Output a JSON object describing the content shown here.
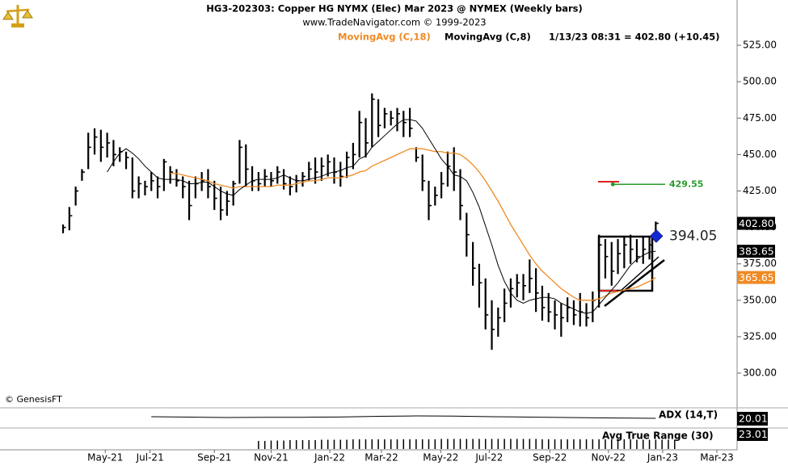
{
  "chart_data": {
    "type": "hlc",
    "title": "HG3-202303:  Copper HG NYMX (Elec) Mar 2023 @ NYMEX  (Weekly bars)",
    "subtitle": "www.TradeNavigator.com © 1999-2023",
    "quote": "1/13/23 08:31 = 402.80 (+10.45)",
    "watermark": "© GenesisFT",
    "bars": {
      "color": "#000000",
      "high": [
        402,
        414,
        428,
        440,
        465,
        468,
        467,
        465,
        460,
        455,
        452,
        448,
        435,
        432,
        438,
        435,
        447,
        442,
        440,
        435,
        432,
        435,
        438,
        440,
        432,
        428,
        425,
        432,
        460,
        457,
        442,
        438,
        440,
        438,
        442,
        440,
        435,
        436,
        438,
        445,
        448,
        448,
        450,
        448,
        445,
        452,
        458,
        480,
        475,
        492,
        488,
        482,
        480,
        482,
        480,
        482,
        455,
        450,
        432,
        428,
        438,
        452,
        455,
        440,
        410,
        390,
        375,
        365,
        350,
        345,
        358,
        365,
        368,
        368,
        378,
        372,
        360,
        355,
        350,
        348,
        352,
        350,
        355,
        348,
        356,
        395,
        392,
        390,
        392,
        394,
        395,
        392,
        394,
        394,
        404
      ],
      "low": [
        396,
        398,
        415,
        432,
        440,
        450,
        445,
        448,
        442,
        445,
        440,
        420,
        420,
        422,
        425,
        420,
        425,
        430,
        428,
        420,
        405,
        420,
        425,
        420,
        412,
        405,
        408,
        415,
        430,
        428,
        425,
        425,
        428,
        428,
        430,
        426,
        422,
        424,
        428,
        432,
        430,
        432,
        435,
        430,
        428,
        434,
        440,
        448,
        448,
        455,
        462,
        468,
        470,
        466,
        462,
        462,
        445,
        425,
        405,
        415,
        420,
        428,
        425,
        405,
        380,
        360,
        345,
        330,
        316,
        325,
        335,
        345,
        352,
        350,
        355,
        342,
        336,
        335,
        330,
        325,
        335,
        333,
        332,
        332,
        335,
        345,
        365,
        360,
        368,
        372,
        375,
        376,
        375,
        378,
        390
      ],
      "close": [
        400,
        408,
        425,
        438,
        455,
        462,
        455,
        458,
        450,
        452,
        448,
        425,
        430,
        428,
        432,
        428,
        445,
        438,
        432,
        428,
        415,
        430,
        432,
        428,
        420,
        412,
        418,
        430,
        455,
        440,
        432,
        430,
        435,
        432,
        438,
        430,
        428,
        432,
        435,
        440,
        438,
        442,
        445,
        438,
        435,
        448,
        450,
        472,
        458,
        488,
        470,
        478,
        475,
        478,
        472,
        468,
        448,
        432,
        415,
        422,
        430,
        442,
        438,
        415,
        395,
        372,
        362,
        340,
        330,
        338,
        348,
        358,
        362,
        360,
        365,
        355,
        345,
        342,
        340,
        338,
        345,
        340,
        342,
        338,
        350,
        388,
        380,
        370,
        382,
        388,
        385,
        380,
        385,
        388,
        402.8
      ]
    },
    "overlays": [
      {
        "name": "MovingAvg (C,18)",
        "color": "#f08a24",
        "width": 1.3,
        "values": [
          null,
          null,
          null,
          null,
          null,
          null,
          null,
          null,
          null,
          null,
          null,
          null,
          null,
          null,
          null,
          null,
          null,
          437,
          437,
          436,
          435,
          434,
          433,
          432,
          430,
          429,
          428,
          427,
          428,
          428,
          428,
          428,
          428,
          428,
          429,
          429,
          429,
          430,
          431,
          432,
          432,
          433,
          434,
          434,
          434,
          435,
          436,
          438,
          439,
          442,
          444,
          446,
          448,
          450,
          452,
          454,
          454,
          454,
          453,
          452,
          452,
          451,
          451,
          450,
          447,
          443,
          438,
          432,
          425,
          418,
          410,
          402,
          395,
          388,
          381,
          375,
          370,
          366,
          362,
          358,
          355,
          352,
          350,
          350,
          350,
          351,
          353,
          355,
          356,
          357,
          358,
          359,
          361,
          363,
          365.65
        ]
      },
      {
        "name": "MovingAvg (C,8)",
        "color": "#000000",
        "width": 1,
        "values": [
          null,
          null,
          null,
          null,
          null,
          null,
          null,
          438,
          445,
          451,
          454,
          451,
          447,
          442,
          438,
          434,
          433,
          433,
          433,
          432,
          430,
          430,
          431,
          431,
          428,
          425,
          423,
          422,
          426,
          429,
          432,
          433,
          433,
          433,
          434,
          436,
          434,
          432,
          432,
          433,
          434,
          435,
          437,
          438,
          439,
          441,
          442,
          447,
          449,
          455,
          459,
          463,
          467,
          471,
          474,
          474,
          473,
          468,
          461,
          454,
          447,
          442,
          436,
          435,
          432,
          424,
          414,
          401,
          388,
          374,
          363,
          355,
          350,
          348,
          350,
          351,
          352,
          352,
          351,
          348,
          346,
          344,
          342,
          341,
          342,
          347,
          352,
          357,
          362,
          368,
          374,
          378,
          381,
          383,
          383.65
        ]
      }
    ],
    "price_labels": [
      {
        "value": 402.8,
        "label": "402.80",
        "color": "#000000"
      },
      {
        "value": 383.65,
        "label": "383.65",
        "color": "#000000"
      },
      {
        "value": 365.65,
        "label": "365.65",
        "color": "#f08a24"
      }
    ],
    "annotations": [
      {
        "value": 394.05,
        "label": "394.05",
        "color": "#1428d2"
      },
      {
        "value": 429.55,
        "label": "429.55",
        "color": "#2a9a2a"
      }
    ],
    "ylim": [
      276.2,
      533.9
    ],
    "yticks": [
      {
        "value": 300,
        "label": "300.00"
      },
      {
        "value": 325,
        "label": "325.00"
      },
      {
        "value": 350,
        "label": "350.00"
      },
      {
        "value": 375,
        "label": "375.00"
      },
      {
        "value": 400,
        "label": "400.00"
      },
      {
        "value": 425,
        "label": "425.00"
      },
      {
        "value": 450,
        "label": "450.00"
      },
      {
        "value": 475,
        "label": "475.00"
      },
      {
        "value": 500,
        "label": "500.00"
      },
      {
        "value": 525,
        "label": "525.00"
      }
    ],
    "xlim": [
      -10,
      106.9
    ],
    "xticks": [
      {
        "value": 6.7,
        "label": "May-21"
      },
      {
        "value": 13.8,
        "label": "Jul-21"
      },
      {
        "value": 24,
        "label": "Sep-21"
      },
      {
        "value": 33,
        "label": "Nov-21"
      },
      {
        "value": 42.3,
        "label": "Jan-22"
      },
      {
        "value": 50.5,
        "label": "Mar-22"
      },
      {
        "value": 59.9,
        "label": "May-22"
      },
      {
        "value": 67.6,
        "label": "Jul-22"
      },
      {
        "value": 77.2,
        "label": "Sep-22"
      },
      {
        "value": 86.5,
        "label": "Nov-22"
      },
      {
        "value": 95.1,
        "label": "Jan-23"
      },
      {
        "value": 103.7,
        "label": "Mar-23"
      }
    ],
    "panels": [
      {
        "name": "ADX (14,T)",
        "type": "line",
        "color": "#000000",
        "ylim": [
          10,
          30
        ],
        "x": [
          14,
          20,
          26,
          32,
          38,
          44,
          50,
          56,
          62,
          68,
          74,
          80,
          86,
          90,
          94
        ],
        "values": [
          22,
          21.5,
          21,
          21.2,
          21.3,
          21.6,
          22.5,
          23,
          22.8,
          22,
          21.5,
          21,
          20.5,
          20.2,
          20.01
        ],
        "last": 20.01
      },
      {
        "name": "Avg True Range (30)",
        "type": "bar",
        "color": "#000000",
        "ylim": [
          0,
          50
        ],
        "values": [
          null,
          null,
          null,
          null,
          null,
          null,
          null,
          null,
          null,
          null,
          null,
          null,
          null,
          null,
          null,
          null,
          null,
          null,
          null,
          null,
          null,
          null,
          null,
          null,
          null,
          null,
          null,
          null,
          null,
          null,
          null,
          20,
          20,
          21,
          21,
          21,
          22,
          22,
          22,
          22,
          22,
          23,
          23,
          23,
          23,
          23,
          24,
          24,
          24,
          24,
          24,
          24,
          24,
          24,
          24,
          24,
          24,
          24,
          24,
          24,
          25,
          25,
          25,
          25,
          25,
          25,
          25,
          25,
          25,
          25,
          25,
          25,
          25,
          25,
          25,
          25,
          24,
          24,
          24,
          24,
          24,
          24,
          24,
          24,
          24,
          24,
          24,
          24,
          24,
          24,
          24,
          23,
          23,
          23,
          23,
          23,
          23,
          23.01
        ],
        "last": 23.01
      }
    ]
  }
}
